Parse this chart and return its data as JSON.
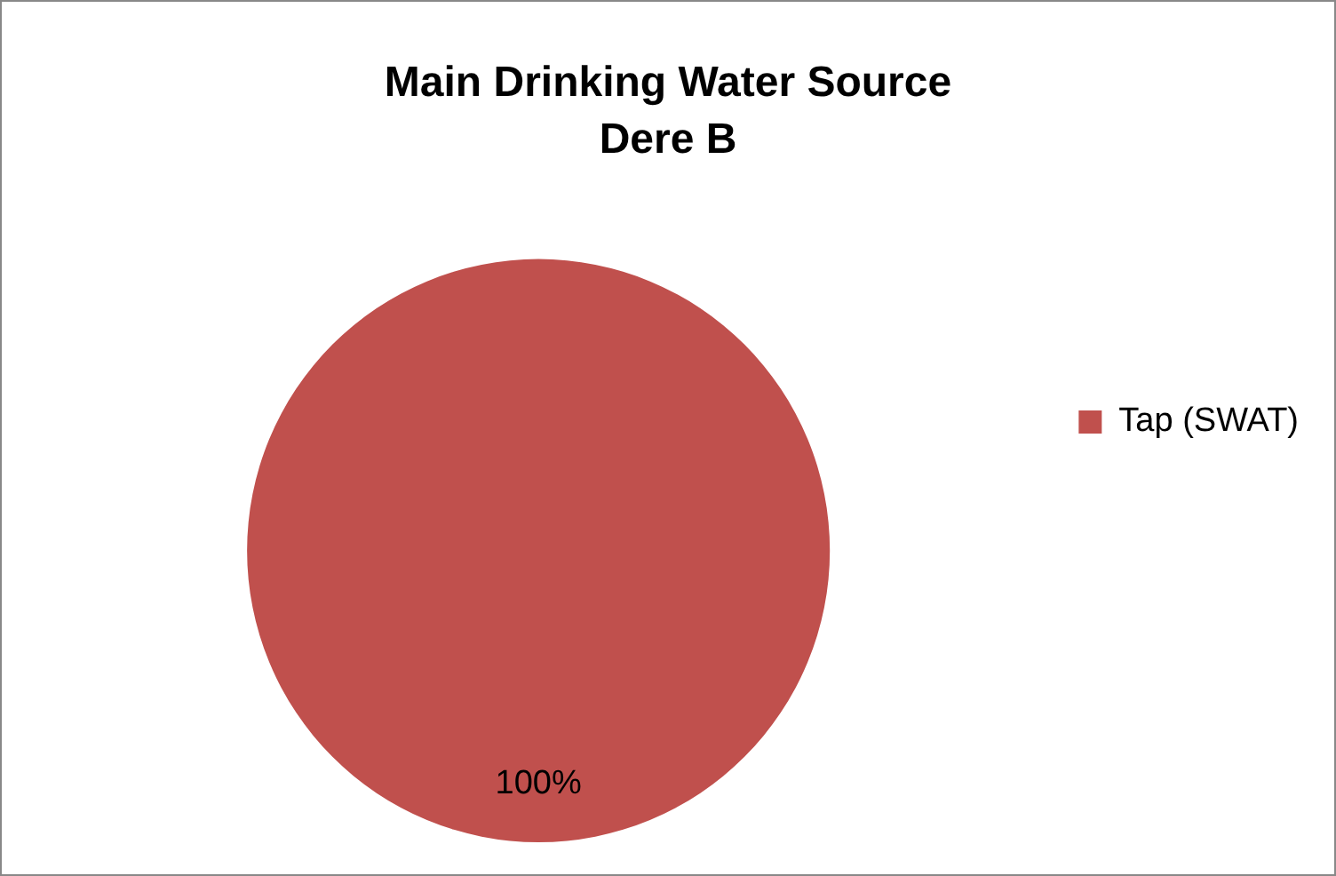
{
  "chart_data": {
    "type": "pie",
    "title": "Main Drinking Water Source\nDere B",
    "categories": [
      "Tap (SWAT)"
    ],
    "values": [
      100
    ],
    "value_labels": [
      "100%"
    ],
    "colors": [
      "#c0504d"
    ],
    "legend": "right"
  }
}
